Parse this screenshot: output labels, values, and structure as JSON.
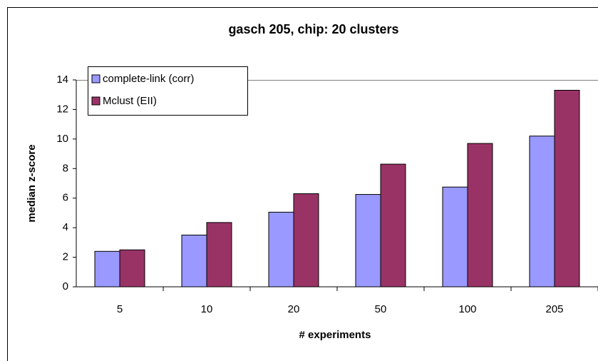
{
  "chart_data": {
    "type": "bar",
    "title": "gasch 205, chip: 20 clusters",
    "x_label": "# experiments",
    "y_label": "median z-score",
    "categories": [
      "5",
      "10",
      "20",
      "50",
      "100",
      "205"
    ],
    "series": [
      {
        "name": "complete-link (corr)",
        "color": "#9999ff",
        "values": [
          2.4,
          3.5,
          5.05,
          6.25,
          6.75,
          10.2
        ]
      },
      {
        "name": "Mclust (EII)",
        "color": "#993366",
        "values": [
          2.5,
          4.35,
          6.3,
          8.3,
          9.7,
          13.3
        ]
      }
    ],
    "ylim": [
      0,
      14
    ],
    "yticks": [
      0,
      2,
      4,
      6,
      8,
      10,
      12,
      14
    ],
    "grid": false,
    "legend": "top-left"
  }
}
